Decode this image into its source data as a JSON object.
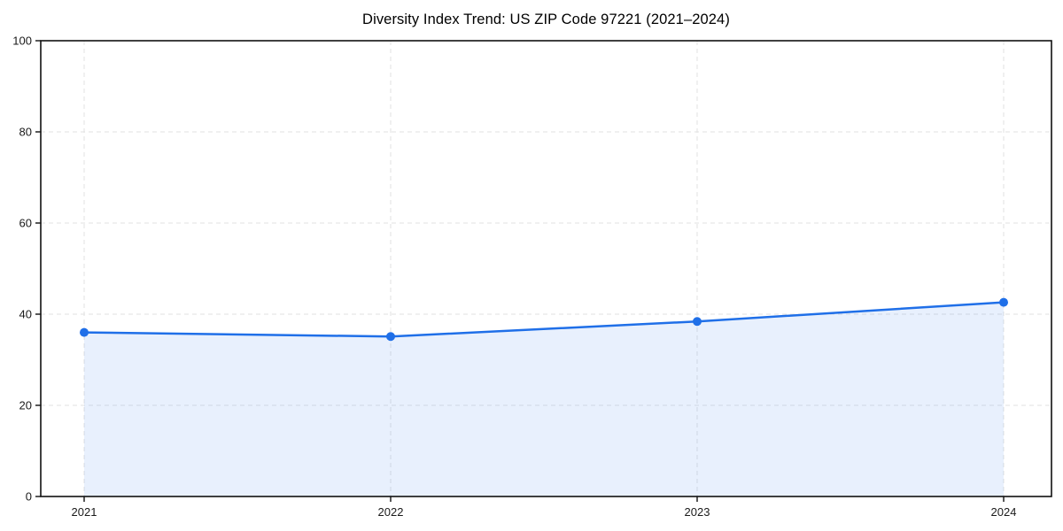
{
  "chart_data": {
    "type": "area",
    "title": "Diversity Index Trend: US ZIP Code 97221 (2021–2024)",
    "x": [
      2021,
      2022,
      2023,
      2024
    ],
    "xticks": [
      "2021",
      "2022",
      "2023",
      "2024"
    ],
    "yticks": [
      0,
      20,
      40,
      60,
      80,
      100
    ],
    "ylim": [
      0,
      100
    ],
    "series": [
      {
        "name": "Diversity Index",
        "values": [
          36.0,
          35.1,
          38.4,
          42.6
        ]
      }
    ],
    "xlabel": "",
    "ylabel": "",
    "grid": "dashed",
    "legend": "none",
    "colors": {
      "line": "#1f6fe8",
      "marker": "#1f6fe8",
      "fill_rgba": "rgba(31,111,232,0.10)",
      "grid": "#e2e2e2",
      "axis": "#111111",
      "tick_label": "#1a1a1a",
      "title": "#000000",
      "background": "#ffffff"
    }
  }
}
